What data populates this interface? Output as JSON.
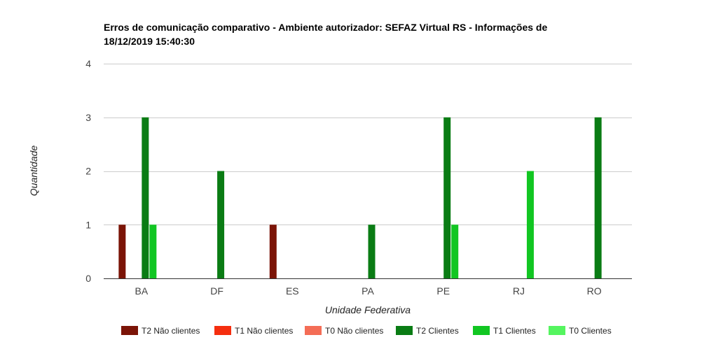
{
  "chart_data": {
    "type": "bar",
    "title_lines": [
      "Erros de comunicação comparativo - Ambiente autorizador: SEFAZ Virtual RS - Informações de",
      "18/12/2019 15:40:30"
    ],
    "xlabel": "Unidade Federativa",
    "ylabel": "Quantidade",
    "ylim": [
      0,
      4
    ],
    "yticks": [
      0,
      1,
      2,
      3,
      4
    ],
    "grid": true,
    "legend_position": "bottom",
    "categories": [
      "BA",
      "DF",
      "ES",
      "PA",
      "PE",
      "RJ",
      "RO"
    ],
    "series": [
      {
        "name": "T2 Não clientes",
        "color": "#7b1407",
        "values": [
          1,
          0,
          1,
          0,
          0,
          0,
          0
        ]
      },
      {
        "name": "T1 Não clientes",
        "color": "#f52e0f",
        "values": [
          0,
          0,
          0,
          0,
          0,
          0,
          0
        ]
      },
      {
        "name": "T0 Não clientes",
        "color": "#f46d56",
        "values": [
          0,
          0,
          0,
          0,
          0,
          0,
          0
        ]
      },
      {
        "name": "T2 Clientes",
        "color": "#0a7c14",
        "values": [
          3,
          2,
          0,
          1,
          3,
          0,
          3
        ]
      },
      {
        "name": "T1 Clientes",
        "color": "#11c622",
        "values": [
          1,
          0,
          0,
          0,
          1,
          2,
          0
        ]
      },
      {
        "name": "T0 Clientes",
        "color": "#55f55f",
        "values": [
          0,
          0,
          0,
          0,
          0,
          0,
          0
        ]
      }
    ]
  }
}
